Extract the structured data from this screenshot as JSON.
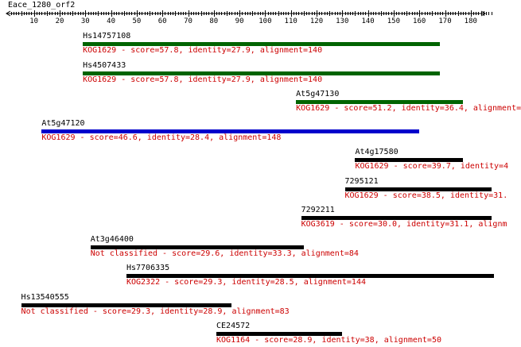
{
  "query": {
    "name": "Eace_1280_orf2",
    "axis_min": 1,
    "axis_max": 188,
    "tick_step": 10,
    "tick_labels": [
      "10",
      "20",
      "30",
      "40",
      "50",
      "60",
      "70",
      "80",
      "90",
      "100",
      "110",
      "120",
      "130",
      "140",
      "150",
      "160",
      "170",
      "180"
    ]
  },
  "colors": {
    "green": "#006400",
    "blue": "#0000cc",
    "black": "#000000",
    "desc_red": "#cc0000"
  },
  "hits": [
    {
      "name": "Hs14757108",
      "desc": "KOG1629 - score=57.8, identity=27.9, alignment=140",
      "start": 29,
      "end": 168,
      "color": "green"
    },
    {
      "name": "Hs4507433",
      "desc": "KOG1629 - score=57.8, identity=27.9, alignment=140",
      "start": 29,
      "end": 168,
      "color": "green"
    },
    {
      "name": "At5g47130",
      "desc": "KOG1629 - score=51.2, identity=36.4, alignment=",
      "start": 112,
      "end": 177,
      "color": "green"
    },
    {
      "name": "At5g47120",
      "desc": "KOG1629 - score=46.6, identity=28.4, alignment=148",
      "start": 13,
      "end": 160,
      "color": "blue"
    },
    {
      "name": "At4g17580",
      "desc": "KOG1629 - score=39.7, identity=4",
      "start": 135,
      "end": 177,
      "color": "black"
    },
    {
      "name": "7295121",
      "desc": "KOG1629 - score=38.5, identity=31.",
      "start": 131,
      "end": 188,
      "color": "black"
    },
    {
      "name": "7292211",
      "desc": "KOG3619 - score=30.0, identity=31.1, alignm",
      "start": 114,
      "end": 188,
      "color": "black"
    },
    {
      "name": "At3g46400",
      "desc": "Not classified - score=29.6, identity=33.3, alignment=84",
      "start": 32,
      "end": 115,
      "color": "black"
    },
    {
      "name": "Hs7706335",
      "desc": "KOG2322 - score=29.3, identity=28.5, alignment=144",
      "start": 46,
      "end": 189,
      "color": "black"
    },
    {
      "name": "Hs13540555",
      "desc": "Not classified - score=29.3, identity=28.9, alignment=83",
      "start": 5,
      "end": 87,
      "color": "black"
    },
    {
      "name": "CE24572",
      "desc": "KOG1164 - score=28.9, identity=38, alignment=50",
      "start": 81,
      "end": 130,
      "color": "black"
    }
  ]
}
